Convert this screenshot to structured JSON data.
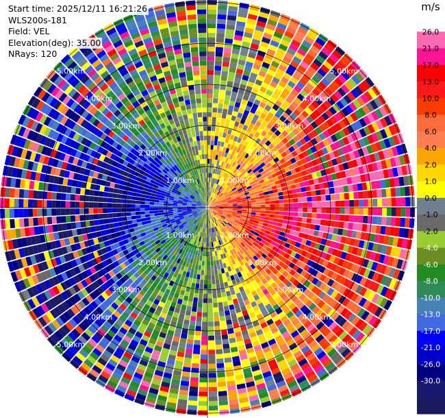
{
  "info": {
    "start_time": "Start time: 2025/12/11 16:21:26",
    "station": "WLS200s-181",
    "field": "Field: VEL",
    "elevation": "Elevation(deg): 35.00",
    "nrays": "NRays: 120"
  },
  "colorbar": {
    "unit": "m/s",
    "colors": [
      "#ffffff",
      "#ff69b4",
      "#ff1493",
      "#ff0000",
      "#ff1a1a",
      "#ff3c00",
      "#ff6b3a",
      "#ff7f50",
      "#ffa500",
      "#ffd700",
      "#ffff00",
      "#708090",
      "#696969",
      "#9acd32",
      "#6b8e23",
      "#228b22",
      "#2e8b57",
      "#4682b4",
      "#4169e1",
      "#0000ff",
      "#0000cd",
      "#000080",
      "#191970",
      "#1a1a5e"
    ],
    "tick_labels": [
      "26.0",
      "21.0",
      "17.0",
      "13.0",
      "10.0",
      "8.0",
      "6.0",
      "4.0",
      "2.0",
      "1.0",
      "0.0",
      "-1.0",
      "-2.0",
      "-4.0",
      "-6.0",
      "-8.0",
      "-10.0",
      "-13.0",
      "-17.0",
      "-21.0",
      "-26.0",
      "-30.0"
    ]
  },
  "chart_data": {
    "type": "heatmap",
    "subtype": "ppi",
    "field": "VEL",
    "unit": "m/s",
    "n_rays": 120,
    "max_range_km": 5.0,
    "range_rings_km": [
      1.0,
      2.0,
      3.0,
      4.0,
      5.0
    ],
    "ring_labels": [
      "1.00km",
      "2.00km",
      "3.00km",
      "4.00km",
      "5.00km"
    ],
    "vmin": -30.0,
    "vmax": 30.0,
    "positive_sector_azimuth_deg": 90,
    "negative_sector_azimuth_deg": 270
  }
}
